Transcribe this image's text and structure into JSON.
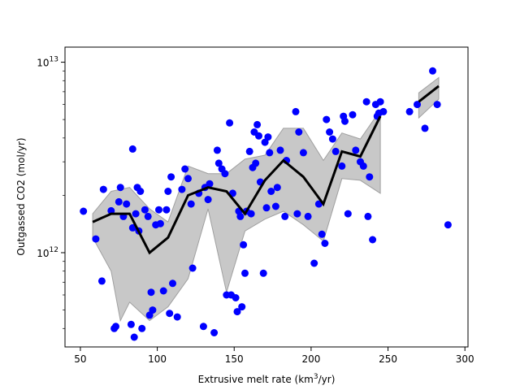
{
  "chart_data": {
    "type": "scatter",
    "title": "",
    "xlabel": "Extrusive melt rate (km",
    "xlabel_sup": "3",
    "xlabel_tail": "/yr)",
    "ylabel": "Outgassed CO2 (mol/yr)",
    "xlim": [
      40,
      302
    ],
    "ylim": [
      320000000000.0,
      12000000000000.0
    ],
    "yscale": "log",
    "grid": false,
    "x_ticks": [
      50,
      100,
      150,
      200,
      250,
      300
    ],
    "y_ticks": [
      {
        "value": 1000000000000.0,
        "base": "10",
        "exp": "12"
      },
      {
        "value": 10000000000000.0,
        "base": "10",
        "exp": "13"
      }
    ],
    "colors": {
      "points": "#0000ff",
      "line": "#000000",
      "band": "#c8c8c8",
      "band_edge": "#a0a0a0"
    },
    "series": [
      {
        "kind": "points",
        "x": [
          52,
          60,
          64,
          65,
          70,
          72,
          73,
          75,
          76,
          78,
          80,
          83,
          84,
          84,
          85,
          86,
          87,
          88,
          89,
          90,
          92,
          94,
          95,
          96,
          97,
          99,
          101,
          102,
          104,
          106,
          107,
          108,
          109,
          110,
          113,
          116,
          118,
          120,
          122,
          123,
          127,
          130,
          131,
          133,
          134,
          137,
          139,
          140,
          142,
          144,
          145,
          147,
          148,
          149,
          151,
          152,
          153,
          154,
          155,
          156,
          157,
          158,
          160,
          161,
          162,
          163,
          164,
          165,
          166,
          167,
          169,
          170,
          171,
          172,
          173,
          174,
          177,
          178,
          180,
          183,
          184,
          190,
          191,
          192,
          195,
          198,
          202,
          205,
          207,
          209,
          210,
          212,
          214,
          216,
          220,
          221,
          222,
          224,
          227,
          229,
          232,
          234,
          236,
          237,
          238,
          240,
          242,
          243,
          244,
          245,
          247,
          264,
          269,
          274,
          279,
          282,
          289
        ],
        "y": [
          1650000000000.0,
          1180000000000.0,
          710000000000.0,
          2150000000000.0,
          1660000000000.0,
          400000000000.0,
          410000000000.0,
          1850000000000.0,
          2200000000000.0,
          1550000000000.0,
          1800000000000.0,
          420000000000.0,
          1350000000000.0,
          3500000000000.0,
          360000000000.0,
          1600000000000.0,
          2200000000000.0,
          1300000000000.0,
          2100000000000.0,
          400000000000.0,
          1680000000000.0,
          1550000000000.0,
          470000000000.0,
          620000000000.0,
          500000000000.0,
          1400000000000.0,
          1680000000000.0,
          1420000000000.0,
          630000000000.0,
          1680000000000.0,
          2100000000000.0,
          480000000000.0,
          2500000000000.0,
          690000000000.0,
          460000000000.0,
          2150000000000.0,
          2750000000000.0,
          2450000000000.0,
          1800000000000.0,
          830000000000.0,
          2050000000000.0,
          410000000000.0,
          2200000000000.0,
          1900000000000.0,
          2300000000000.0,
          380000000000.0,
          3450000000000.0,
          2950000000000.0,
          2750000000000.0,
          2600000000000.0,
          600000000000.0,
          4800000000000.0,
          600000000000.0,
          2050000000000.0,
          580000000000.0,
          490000000000.0,
          1650000000000.0,
          1550000000000.0,
          520000000000.0,
          1100000000000.0,
          780000000000.0,
          1650000000000.0,
          3400000000000.0,
          1600000000000.0,
          2800000000000.0,
          4300000000000.0,
          2950000000000.0,
          4700000000000.0,
          4100000000000.0,
          2350000000000.0,
          780000000000.0,
          3800000000000.0,
          1720000000000.0,
          4050000000000.0,
          3350000000000.0,
          2100000000000.0,
          1750000000000.0,
          2200000000000.0,
          3450000000000.0,
          1550000000000.0,
          3050000000000.0,
          5500000000000.0,
          1600000000000.0,
          4300000000000.0,
          3350000000000.0,
          1550000000000.0,
          880000000000.0,
          1800000000000.0,
          1250000000000.0,
          1120000000000.0,
          5000000000000.0,
          4300000000000.0,
          3950000000000.0,
          3400000000000.0,
          2850000000000.0,
          5200000000000.0,
          4900000000000.0,
          1600000000000.0,
          5300000000000.0,
          3450000000000.0,
          3000000000000.0,
          2850000000000.0,
          6200000000000.0,
          1550000000000.0,
          2500000000000.0,
          1170000000000.0,
          6000000000000.0,
          5200000000000.0,
          5400000000000.0,
          6200000000000.0,
          5500000000000.0,
          5500000000000.0,
          6000000000000.0,
          4500000000000.0,
          9000000000000.0,
          6000000000000.0,
          1400000000000.0
        ]
      },
      {
        "kind": "median",
        "x": [
          58,
          70,
          82,
          95,
          107,
          120,
          133,
          145,
          157,
          170,
          182,
          195,
          208,
          220,
          232,
          245
        ],
        "y": [
          1450000000000.0,
          1600000000000.0,
          1600000000000.0,
          1000000000000.0,
          1200000000000.0,
          2000000000000.0,
          2200000000000.0,
          2100000000000.0,
          1600000000000.0,
          2400000000000.0,
          3050000000000.0,
          2500000000000.0,
          1800000000000.0,
          3400000000000.0,
          3200000000000.0,
          5200000000000.0
        ]
      },
      {
        "kind": "median",
        "x": [
          270,
          283
        ],
        "y": [
          6200000000000.0,
          7500000000000.0
        ]
      },
      {
        "kind": "band",
        "x": [
          58,
          70,
          76,
          82,
          95,
          107,
          120,
          133,
          145,
          157,
          170,
          182,
          195,
          208,
          220,
          232,
          245
        ],
        "low": [
          1200000000000.0,
          800000000000.0,
          440000000000.0,
          550000000000.0,
          440000000000.0,
          520000000000.0,
          730000000000.0,
          1700000000000.0,
          620000000000.0,
          1300000000000.0,
          1500000000000.0,
          1650000000000.0,
          1400000000000.0,
          1150000000000.0,
          2450000000000.0,
          2400000000000.0,
          2050000000000.0
        ],
        "high": [
          1600000000000.0,
          2100000000000.0,
          2150000000000.0,
          2200000000000.0,
          1700000000000.0,
          1450000000000.0,
          2850000000000.0,
          2600000000000.0,
          2600000000000.0,
          3100000000000.0,
          3250000000000.0,
          4500000000000.0,
          4500000000000.0,
          3050000000000.0,
          4250000000000.0,
          3950000000000.0,
          5600000000000.0
        ]
      },
      {
        "kind": "band",
        "x": [
          270,
          283
        ],
        "low": [
          5100000000000.0,
          6400000000000.0
        ],
        "high": [
          6900000000000.0,
          8300000000000.0
        ]
      }
    ]
  }
}
